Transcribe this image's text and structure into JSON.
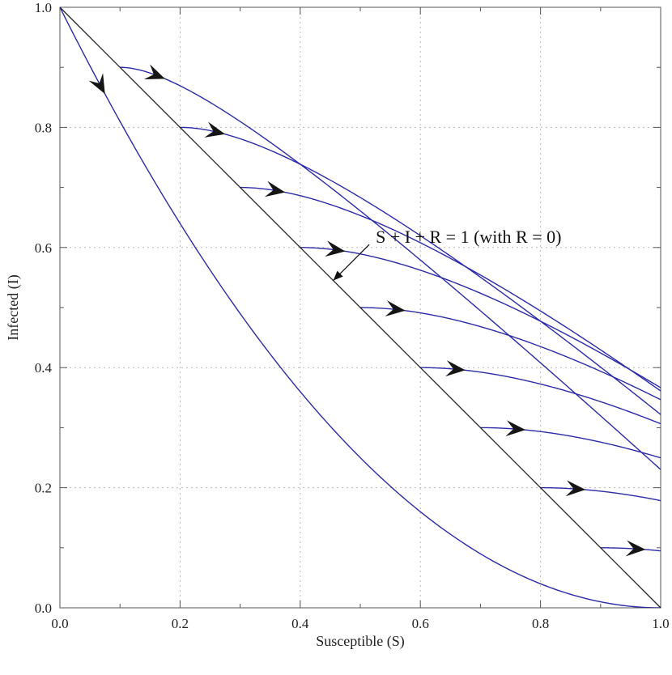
{
  "chart_data": {
    "type": "line",
    "title": "",
    "xlabel": "Susceptible (S)",
    "ylabel": "Infected (I)",
    "xlim": [
      0,
      1
    ],
    "ylim": [
      0,
      1
    ],
    "x_ticks": [
      "0.0",
      "0.2",
      "0.4",
      "0.6",
      "0.8",
      "1.0"
    ],
    "y_ticks": [
      "0.0",
      "0.2",
      "0.4",
      "0.6",
      "0.8",
      "1.0"
    ],
    "grid": true,
    "annotation": "S + I + R = 1 (with R = 0)",
    "boundary_line": {
      "x": [
        0,
        1
      ],
      "y": [
        1,
        0
      ]
    },
    "initial_S": [
      0.0,
      0.1,
      0.2,
      0.3,
      0.4,
      0.5,
      0.6,
      0.7,
      0.8,
      0.9
    ],
    "series_color": "#2b2ba8",
    "boundary_color": "#222222"
  }
}
